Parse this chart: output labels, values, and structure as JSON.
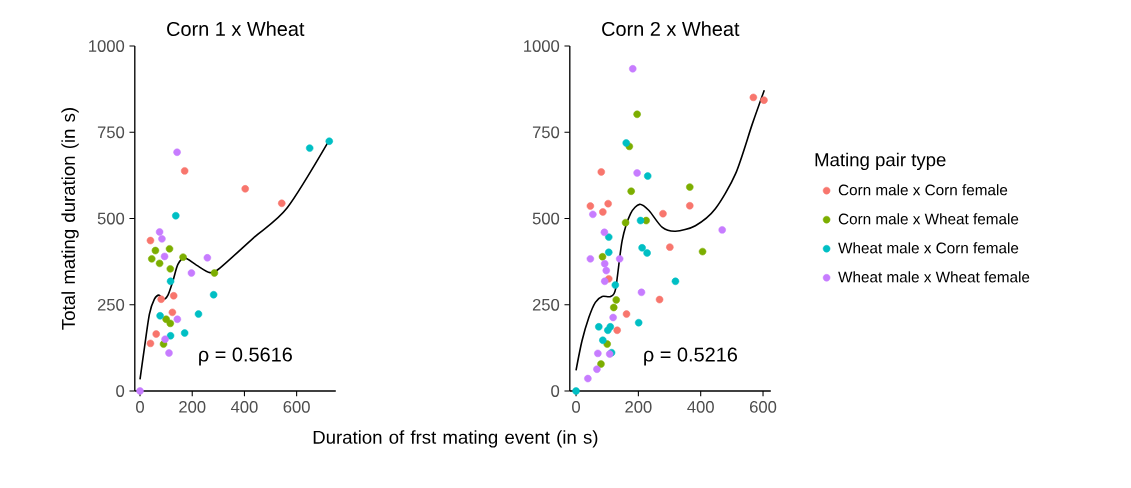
{
  "chart_data": [
    {
      "type": "scatter",
      "title": "Corn 1 x Wheat",
      "xlabel": "Duration of frst mating event (in s)",
      "ylabel": "Total mating duration (in s)",
      "xlim": [
        -20,
        750
      ],
      "ylim": [
        0,
        1000
      ],
      "xticks": [
        0,
        200,
        400,
        600
      ],
      "yticks": [
        0,
        250,
        500,
        750,
        1000
      ],
      "grid": false,
      "annotations": [
        "ρ = 0.5616"
      ],
      "series": [
        {
          "color": "#f8766d",
          "marker": "circle",
          "x": [
            40,
            62,
            40,
            171,
            403,
            543,
            129,
            81,
            124
          ],
          "values": [
            436,
            165,
            138,
            638,
            586,
            544,
            276,
            266,
            228
          ]
        },
        {
          "color": "#7cae00",
          "marker": "circle",
          "x": [
            59,
            113,
            45,
            75,
            116,
            165,
            285,
            100,
            116,
            90
          ],
          "values": [
            407,
            412,
            383,
            370,
            354,
            388,
            342,
            208,
            196,
            136
          ]
        },
        {
          "color": "#00bfc4",
          "marker": "circle",
          "x": [
            650,
            725,
            137,
            117,
            282,
            224,
            77,
            171,
            117
          ],
          "values": [
            704,
            724,
            508,
            318,
            279,
            223,
            218,
            168,
            160
          ]
        },
        {
          "color": "#c77cff",
          "marker": "circle",
          "x": [
            142,
            75,
            84,
            94,
            258,
            197,
            143,
            96,
            111,
            0
          ],
          "values": [
            692,
            461,
            441,
            390,
            386,
            342,
            208,
            150,
            110,
            0
          ]
        },
        {
          "type": "line",
          "color": "#000000",
          "marker": "none",
          "x": [
            0,
            17,
            36,
            55,
            72,
            90,
            107,
            126,
            145,
            171,
            216,
            268,
            307,
            435,
            564,
            725
          ],
          "values": [
            34,
            126,
            223,
            266,
            278,
            266,
            278,
            319,
            367,
            386,
            365,
            343,
            357,
            444,
            531,
            727
          ]
        }
      ]
    },
    {
      "type": "scatter",
      "title": "Corn 2 x Wheat",
      "xlim": [
        -20,
        625
      ],
      "ylim": [
        0,
        1000
      ],
      "xticks": [
        0,
        200,
        400,
        600
      ],
      "yticks": [
        0,
        250,
        500,
        750,
        1000
      ],
      "grid": false,
      "legend": "right",
      "legend_title": "Mating pair type",
      "annotations": [
        "ρ = 0.5216"
      ],
      "series": [
        {
          "name": "Corn male x Corn female",
          "color": "#f8766d",
          "marker": "circle",
          "x": [
            569,
            603,
            81,
            46,
            86,
            103,
            279,
            365,
            301,
            268,
            162,
            132,
            105
          ],
          "values": [
            851,
            843,
            635,
            536,
            519,
            543,
            514,
            537,
            417,
            265,
            223,
            176,
            325
          ]
        },
        {
          "name": "Corn male x Wheat female",
          "color": "#7cae00",
          "marker": "circle",
          "x": [
            196,
            171,
            177,
            365,
            225,
            159,
            406,
            85,
            129,
            121,
            100,
            80
          ],
          "values": [
            802,
            709,
            579,
            591,
            494,
            488,
            404,
            389,
            264,
            242,
            136,
            78
          ]
        },
        {
          "name": "Wheat male x Corn female",
          "color": "#00bfc4",
          "marker": "circle",
          "x": [
            161,
            230,
            207,
            105,
            105,
            212,
            228,
            319,
            126,
            201,
            73,
            110,
            102,
            86,
            114,
            0
          ],
          "values": [
            719,
            623,
            494,
            446,
            402,
            415,
            400,
            318,
            307,
            198,
            186,
            186,
            176,
            147,
            111,
            0
          ]
        },
        {
          "name": "Wheat male x Wheat female",
          "color": "#c77cff",
          "marker": "circle",
          "x": [
            182,
            196,
            469,
            54,
            91,
            46,
            140,
            92,
            97,
            92,
            210,
            119,
            70,
            108,
            67,
            38
          ],
          "values": [
            934,
            632,
            467,
            512,
            460,
            383,
            383,
            369,
            349,
            318,
            286,
            213,
            109,
            107,
            63,
            36
          ]
        },
        {
          "type": "line",
          "color": "#000000",
          "marker": "none",
          "x": [
            0,
            19,
            41,
            62,
            84,
            111,
            127,
            148,
            175,
            204,
            234,
            276,
            319,
            383,
            447,
            512,
            566,
            604
          ],
          "values": [
            60,
            145,
            213,
            257,
            274,
            274,
            296,
            436,
            514,
            541,
            523,
            475,
            463,
            479,
            528,
            630,
            775,
            872
          ]
        }
      ]
    }
  ]
}
